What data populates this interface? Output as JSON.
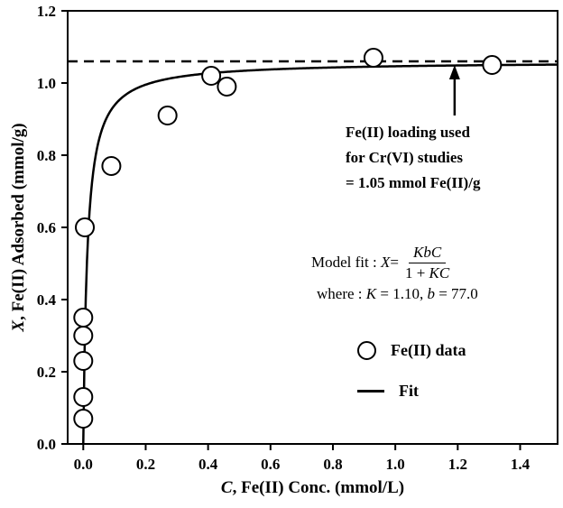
{
  "chart_data": {
    "type": "scatter",
    "title": "",
    "xlabel_italic": "C",
    "xlabel_rest": ", Fe(II) Conc. (mmol/L)",
    "ylabel_italic": "X",
    "ylabel_rest": ", Fe(II) Adsorbed (mmol/g)",
    "xlim": [
      -0.05,
      1.52
    ],
    "ylim": [
      0,
      1.2
    ],
    "xticks": [
      0.0,
      0.2,
      0.4,
      0.6,
      0.8,
      1.0,
      1.2,
      1.4
    ],
    "yticks": [
      0.0,
      0.2,
      0.4,
      0.6,
      0.8,
      1.0,
      1.2
    ],
    "grid": false,
    "points": [
      [
        0.0,
        0.07
      ],
      [
        0.0,
        0.13
      ],
      [
        0.0,
        0.23
      ],
      [
        0.0,
        0.3
      ],
      [
        0.0,
        0.35
      ],
      [
        0.005,
        0.6
      ],
      [
        0.09,
        0.77
      ],
      [
        0.27,
        0.91
      ],
      [
        0.41,
        1.02
      ],
      [
        0.46,
        0.99
      ],
      [
        0.93,
        1.07
      ],
      [
        1.31,
        1.05
      ]
    ],
    "dashed_line_y": 1.06,
    "fit_curve": {
      "asymptote": 1.06,
      "k": 77.0,
      "c_max": 1.52
    },
    "annotation": {
      "arrow_x": 1.19,
      "lines": [
        "Fe(II) loading used",
        "for Cr(VI) studies",
        "= 1.05 mmol Fe(II)/g"
      ]
    },
    "colors": {
      "line": "#000000",
      "marker_stroke": "#000000",
      "marker_fill": "#ffffff"
    }
  },
  "model": {
    "prefix": "Model fit :",
    "var": "X",
    "eq": " = ",
    "num": "KbC",
    "den_prefix": "1 + ",
    "den_var": "KC"
  },
  "where": {
    "prefix": "where : ",
    "k": "K",
    "k_val": " = 1.10, ",
    "b": "b",
    "b_val": " = 77.0"
  },
  "legend": [
    {
      "label": "Fe(II) data",
      "marker": "open-circle"
    },
    {
      "label": "Fit",
      "marker": "solid-line"
    }
  ]
}
